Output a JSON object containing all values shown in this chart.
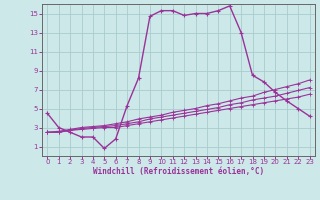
{
  "xlabel": "Windchill (Refroidissement éolien,°C)",
  "background_color": "#cde8e8",
  "grid_color": "#aacccc",
  "line_color": "#993399",
  "spine_color": "#666666",
  "x_ticks": [
    0,
    1,
    2,
    3,
    4,
    5,
    6,
    7,
    8,
    9,
    10,
    11,
    12,
    13,
    14,
    15,
    16,
    17,
    18,
    19,
    20,
    21,
    22,
    23
  ],
  "y_ticks": [
    1,
    3,
    5,
    7,
    9,
    11,
    13,
    15
  ],
  "xlim": [
    -0.5,
    23.5
  ],
  "ylim": [
    0.0,
    16.0
  ],
  "series1_x": [
    0,
    1,
    2,
    3,
    4,
    5,
    6,
    7,
    8,
    9,
    10,
    11,
    12,
    13,
    14,
    15,
    16,
    17,
    18,
    19,
    20,
    21,
    22,
    23
  ],
  "series1_y": [
    4.5,
    3.0,
    2.5,
    2.0,
    2.0,
    0.8,
    1.8,
    5.3,
    8.2,
    14.7,
    15.3,
    15.3,
    14.8,
    15.0,
    15.0,
    15.3,
    15.8,
    13.0,
    8.5,
    7.8,
    6.7,
    5.8,
    5.0,
    4.2
  ],
  "series2_x": [
    0,
    1,
    2,
    3,
    4,
    5,
    6,
    7,
    8,
    9,
    10,
    11,
    12,
    13,
    14,
    15,
    16,
    17,
    18,
    19,
    20,
    21,
    22,
    23
  ],
  "series2_y": [
    2.5,
    2.5,
    2.7,
    2.8,
    2.9,
    3.0,
    3.0,
    3.2,
    3.4,
    3.6,
    3.8,
    4.0,
    4.2,
    4.4,
    4.6,
    4.8,
    5.0,
    5.2,
    5.4,
    5.6,
    5.8,
    6.0,
    6.2,
    6.5
  ],
  "series3_x": [
    0,
    1,
    2,
    3,
    4,
    5,
    6,
    7,
    8,
    9,
    10,
    11,
    12,
    13,
    14,
    15,
    16,
    17,
    18,
    19,
    20,
    21,
    22,
    23
  ],
  "series3_y": [
    2.5,
    2.5,
    2.7,
    2.9,
    3.0,
    3.1,
    3.2,
    3.4,
    3.6,
    3.9,
    4.1,
    4.3,
    4.5,
    4.7,
    4.9,
    5.1,
    5.4,
    5.6,
    5.9,
    6.1,
    6.3,
    6.6,
    6.9,
    7.2
  ],
  "series4_x": [
    0,
    1,
    2,
    3,
    4,
    5,
    6,
    7,
    8,
    9,
    10,
    11,
    12,
    13,
    14,
    15,
    16,
    17,
    18,
    19,
    20,
    21,
    22,
    23
  ],
  "series4_y": [
    2.5,
    2.6,
    2.8,
    3.0,
    3.1,
    3.2,
    3.4,
    3.6,
    3.9,
    4.1,
    4.3,
    4.6,
    4.8,
    5.0,
    5.3,
    5.5,
    5.8,
    6.1,
    6.3,
    6.7,
    7.0,
    7.3,
    7.6,
    8.0
  ],
  "tick_fontsize": 5.0,
  "xlabel_fontsize": 5.5,
  "linewidth_main": 1.0,
  "linewidth_sub": 0.8,
  "marker_size_main": 3.5,
  "marker_size_sub": 2.5
}
